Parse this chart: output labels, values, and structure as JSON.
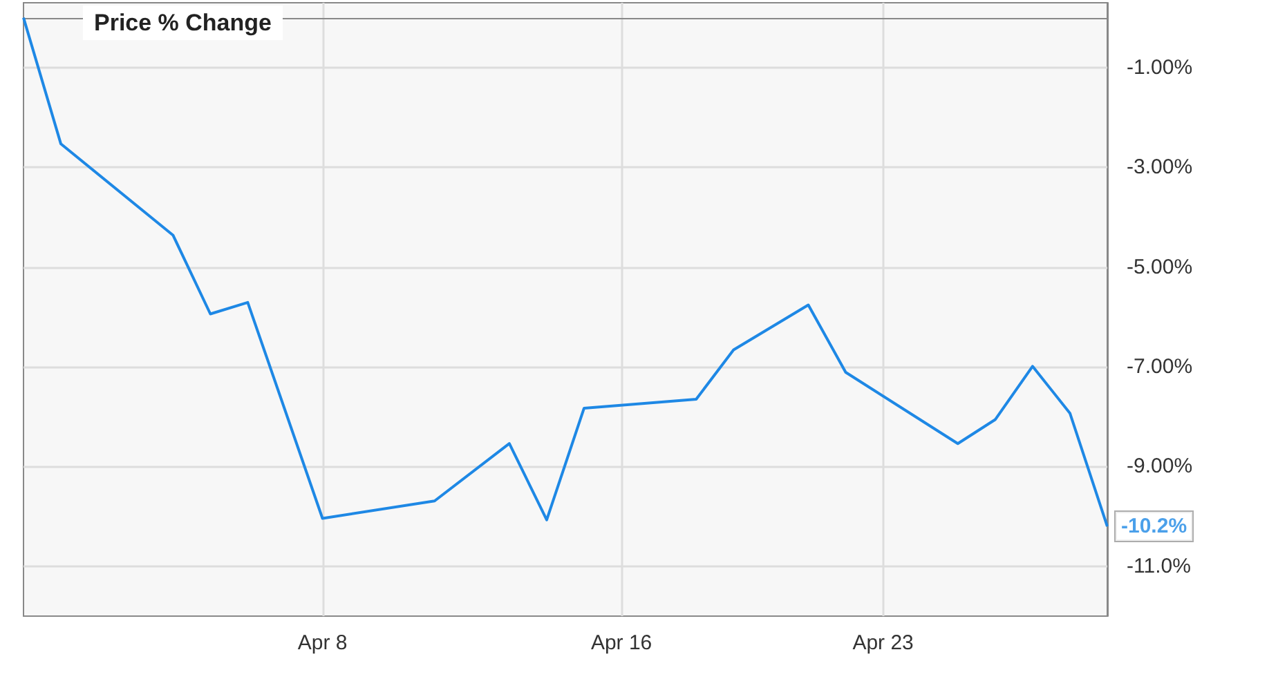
{
  "chart_data": {
    "type": "line",
    "title": "Price % Change",
    "x": [
      "--03-31",
      "--04-01",
      "--04-04",
      "--04-05",
      "--04-06",
      "--04-08",
      "--04-11",
      "--04-13",
      "--04-14",
      "--04-15",
      "--04-18",
      "--04-19",
      "--04-21",
      "--04-22",
      "--04-25",
      "--04-26",
      "--04-27",
      "--04-28",
      "--04-29"
    ],
    "series": [
      {
        "color": "#1e88e5",
        "values": [
          0,
          -2.53,
          -4.36,
          -5.94,
          -5.71,
          -10.04,
          -9.69,
          -8.54,
          -10.07,
          -7.83,
          -7.65,
          -6.66,
          -5.76,
          -7.11,
          -8.54,
          -8.06,
          -6.99,
          -7.93,
          -10.2
        ]
      }
    ],
    "xlim": [
      "--03-31",
      "--04-29"
    ],
    "xticks": [
      {
        "value": "--04-08",
        "label": "Apr 8"
      },
      {
        "value": "--04-16",
        "label": "Apr 16"
      },
      {
        "value": "--04-23",
        "label": "Apr 23"
      }
    ],
    "ylim": [
      -12,
      0.3
    ],
    "yticks": [
      {
        "value": -1,
        "label": "-1.00%"
      },
      {
        "value": -3,
        "label": "-3.00%"
      },
      {
        "value": -5,
        "label": "-5.00%"
      },
      {
        "value": -7,
        "label": "-7.00%"
      },
      {
        "value": -9,
        "label": "-9.00%"
      },
      {
        "value": -11,
        "label": "-11.0%"
      }
    ],
    "annotations": [
      {
        "text": "-10.2%",
        "x": "--04-29",
        "y": -10.2
      }
    ],
    "grid": true,
    "marker": "none",
    "line_style": "solid"
  }
}
